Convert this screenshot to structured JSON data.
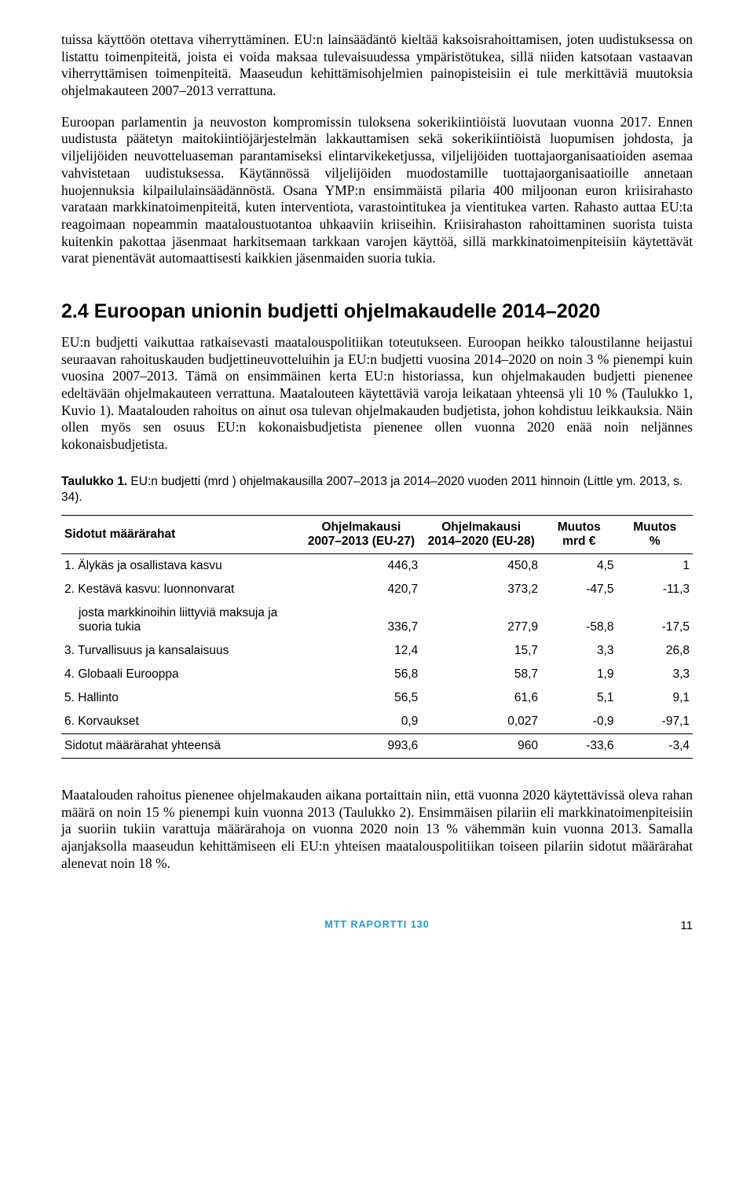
{
  "para1": "tuissa käyttöön otettava viherryttäminen. EU:n lainsäädäntö kieltää kaksoisrahoittamisen, joten uudistuksessa on listattu toimenpiteitä, joista ei voida maksaa tulevaisuudessa ympäristötukea, sillä niiden katsotaan vastaavan viherryttämisen toimenpiteitä. Maaseudun kehittämisohjelmien painopisteisiin ei tule merkittäviä muutoksia ohjelmakauteen 2007–2013 verrattuna.",
  "para2": "Euroopan parlamentin ja neuvoston kompromissin tuloksena sokerikiintiöistä luovutaan vuonna 2017. Ennen uudistusta päätetyn maitokiintiöjärjestelmän lakkauttamisen sekä sokerikiintiöistä luopumisen johdosta, ja viljelijöiden neuvotteluaseman parantamiseksi elintarvikeketjussa, viljelijöiden tuottajaorganisaatioiden asemaa vahvistetaan uudistuksessa. Käytännössä viljelijöiden muodostamille tuottajaorganisaatioille annetaan huojennuksia kilpailulainsäädännöstä. Osana YMP:n ensimmäistä pilaria 400 miljoonan euron kriisirahasto varataan markkinatoimenpiteitä, kuten interventiota, varastointitukea ja vientitukea varten. Rahasto auttaa EU:ta reagoimaan nopeammin maataloustuotantoa uhkaaviin kriiseihin. Kriisirahaston rahoittaminen suorista tuista kuitenkin pakottaa jäsenmaat harkitsemaan tarkkaan varojen käyttöä, sillä markkinatoimenpiteisiin käytettävät varat pienentävät automaattisesti kaikkien jäsenmaiden suoria tukia.",
  "section_heading": "2.4 Euroopan unionin budjetti ohjelmakaudelle 2014–2020",
  "para3": "EU:n budjetti vaikuttaa ratkaisevasti maatalouspolitiikan toteutukseen. Euroopan heikko taloustilanne heijastui seuraavan rahoituskauden budjettineuvotteluihin ja EU:n budjetti vuosina 2014–2020 on noin 3 % pienempi kuin vuosina 2007–2013. Tämä on ensimmäinen kerta EU:n historiassa, kun ohjelmakauden budjetti pienenee edeltävään ohjelmakauteen verrattuna. Maatalouteen käytettäviä varoja leikataan yhteensä yli 10 % (Taulukko 1, Kuvio 1). Maatalouden rahoitus on ainut osa tulevan ohjelmakauden budjetista, johon kohdistuu leikkauksia. Näin ollen myös sen osuus EU:n kokonaisbudjetista pienenee ollen vuonna 2020 enää noin neljännes kokonaisbudjetista.",
  "table_caption_bold": "Taulukko 1.",
  "table_caption_rest": " EU:n budjetti (mrd ) ohjelmakausilla 2007–2013 ja 2014–2020 vuoden 2011 hinnoin (Little ym. 2013, s. 34).",
  "headers": {
    "col0": "Sidotut määrärahat",
    "col1a": "Ohjelmakausi",
    "col1b": "2007–2013 (EU-27)",
    "col2a": "Ohjelmakausi",
    "col2b": "2014–2020 (EU-28)",
    "col3a": "Muutos",
    "col3b": "mrd €",
    "col4a": "Muutos",
    "col4b": "%"
  },
  "rows": [
    {
      "label": "1. Älykäs ja osallistava kasvu",
      "p1": "446,3",
      "p2": "450,8",
      "m1": "4,5",
      "m2": "1",
      "sub": false
    },
    {
      "label": "2. Kestävä kasvu: luonnonvarat",
      "p1": "420,7",
      "p2": "373,2",
      "m1": "-47,5",
      "m2": "-11,3",
      "sub": false
    },
    {
      "label": "josta markkinoihin liittyviä maksuja ja suoria tukia",
      "p1": "336,7",
      "p2": "277,9",
      "m1": "-58,8",
      "m2": "-17,5",
      "sub": true
    },
    {
      "label": "3. Turvallisuus ja kansalaisuus",
      "p1": "12,4",
      "p2": "15,7",
      "m1": "3,3",
      "m2": "26,8",
      "sub": false
    },
    {
      "label": "4. Globaali Eurooppa",
      "p1": "56,8",
      "p2": "58,7",
      "m1": "1,9",
      "m2": "3,3",
      "sub": false
    },
    {
      "label": "5. Hallinto",
      "p1": "56,5",
      "p2": "61,6",
      "m1": "5,1",
      "m2": "9,1",
      "sub": false
    },
    {
      "label": "6. Korvaukset",
      "p1": "0,9",
      "p2": "0,027",
      "m1": "-0,9",
      "m2": "-97,1",
      "sub": false
    }
  ],
  "total_row": {
    "label": "Sidotut määrärahat yhteensä",
    "p1": "993,6",
    "p2": "960",
    "m1": "-33,6",
    "m2": "-3,4"
  },
  "para4": "Maatalouden rahoitus pienenee ohjelmakauden aikana portaittain niin, että vuonna 2020 käytettävissä oleva rahan määrä on noin 15 % pienempi kuin vuonna 2013 (Taulukko 2). Ensimmäisen pilariin eli markkinatoimenpiteisiin ja suoriin tukiin varattuja määrärahoja on vuonna 2020 noin 13 % vähemmän kuin vuonna 2013. Samalla ajanjaksolla maaseudun kehittämiseen eli EU:n yhteisen maatalouspolitiikan toiseen pilariin sidotut määrärahat alenevat noin 18 %.",
  "footer_center": "MTT RAPORTTI 130",
  "footer_page": "11"
}
